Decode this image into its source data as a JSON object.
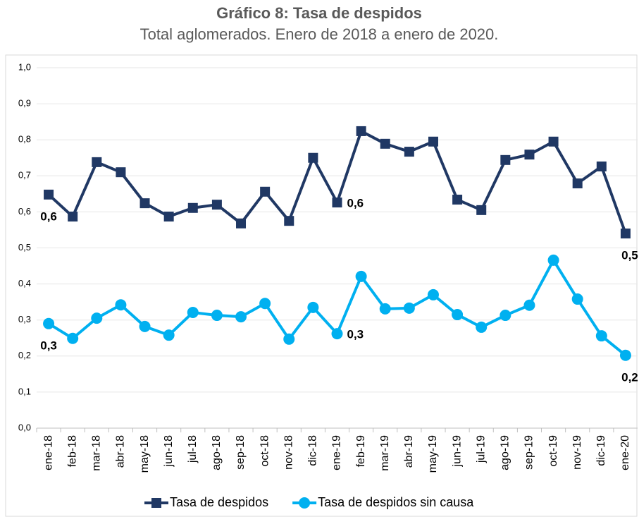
{
  "chart_data": {
    "type": "line",
    "title": "Gráfico 8: Tasa de despidos",
    "subtitle": "Total aglomerados. Enero de 2018 a enero de 2020.",
    "categories": [
      "ene-18",
      "feb-18",
      "mar-18",
      "abr-18",
      "may-18",
      "jun-18",
      "jul-18",
      "ago-18",
      "sep-18",
      "oct-18",
      "nov-18",
      "dic-18",
      "ene-19",
      "feb-19",
      "mar-19",
      "abr-19",
      "may-19",
      "jun-19",
      "jul-19",
      "ago-19",
      "sep-19",
      "oct-19",
      "nov-19",
      "dic-19",
      "ene-20"
    ],
    "series": [
      {
        "name": "Tasa de despidos",
        "color": "#203864",
        "marker": "square",
        "values": [
          0.648,
          0.587,
          0.738,
          0.71,
          0.624,
          0.587,
          0.611,
          0.62,
          0.568,
          0.656,
          0.575,
          0.75,
          0.626,
          0.824,
          0.789,
          0.767,
          0.795,
          0.634,
          0.605,
          0.744,
          0.759,
          0.795,
          0.679,
          0.726,
          0.54
        ],
        "value_labels": [
          "0,6",
          null,
          null,
          null,
          null,
          null,
          null,
          null,
          null,
          null,
          null,
          null,
          "0,6",
          null,
          null,
          null,
          null,
          null,
          null,
          null,
          null,
          null,
          null,
          null,
          "0,5"
        ]
      },
      {
        "name": "Tasa de despidos sin causa",
        "color": "#00b0f0",
        "marker": "circle",
        "values": [
          0.29,
          0.249,
          0.305,
          0.342,
          0.282,
          0.258,
          0.321,
          0.313,
          0.309,
          0.346,
          0.247,
          0.335,
          0.262,
          0.421,
          0.331,
          0.333,
          0.37,
          0.315,
          0.28,
          0.313,
          0.341,
          0.466,
          0.358,
          0.256,
          0.202
        ],
        "value_labels": [
          "0,3",
          null,
          null,
          null,
          null,
          null,
          null,
          null,
          null,
          null,
          null,
          null,
          "0,3",
          null,
          null,
          null,
          null,
          null,
          null,
          null,
          null,
          null,
          null,
          null,
          "0,2"
        ]
      }
    ],
    "ylim": [
      0,
      1
    ],
    "yticks": [
      {
        "value": 0,
        "label": "0,0"
      },
      {
        "value": 0.1,
        "label": "0,1"
      },
      {
        "value": 0.2,
        "label": "0,2"
      },
      {
        "value": 0.3,
        "label": "0,3"
      },
      {
        "value": 0.4,
        "label": "0,4"
      },
      {
        "value": 0.5,
        "label": "0,5"
      },
      {
        "value": 0.6,
        "label": "0,6"
      },
      {
        "value": 0.7,
        "label": "0,7"
      },
      {
        "value": 0.8,
        "label": "0,8"
      },
      {
        "value": 0.9,
        "label": "0,9"
      },
      {
        "value": 1,
        "label": "1,0"
      }
    ],
    "grid": true,
    "legend": "bottom"
  }
}
